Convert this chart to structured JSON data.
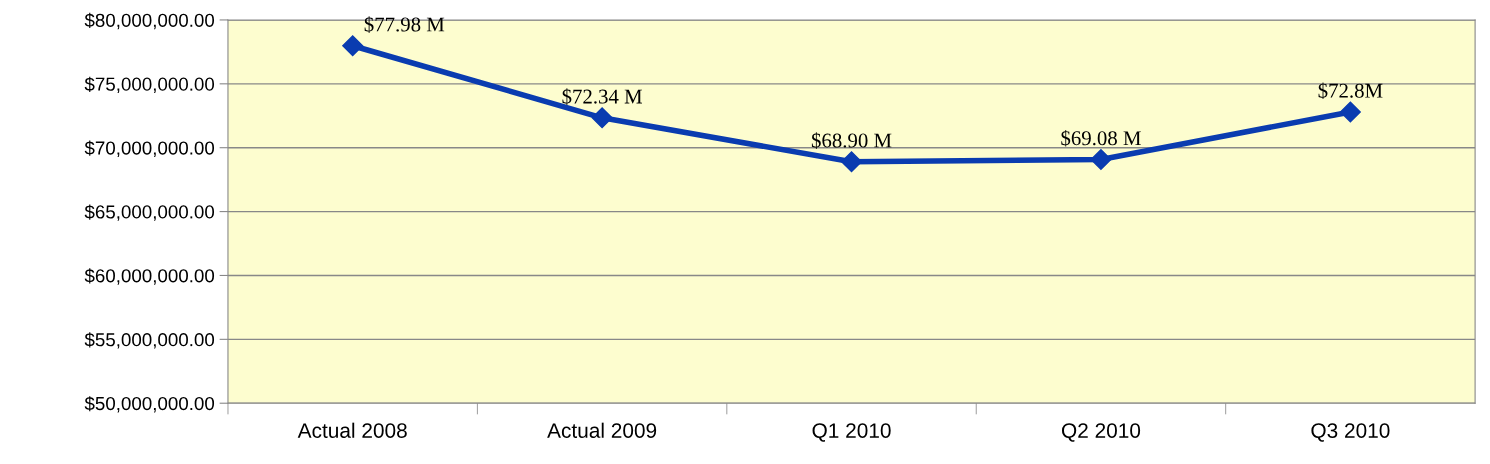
{
  "chart_data": {
    "type": "line",
    "categories": [
      "Actual 2008",
      "Actual 2009",
      "Q1 2010",
      "Q2 2010",
      "Q3 2010"
    ],
    "series": [
      {
        "color": "#0a3cb0",
        "values": [
          77980000,
          72340000,
          68900000,
          69080000,
          72800000
        ],
        "value_labels": [
          "$77.98 M",
          "$72.34 M",
          "$68.90 M",
          "$69.08 M",
          "$72.8M"
        ]
      }
    ],
    "ylim": [
      50000000,
      80000000
    ],
    "yticks": [
      {
        "value": 50000000,
        "label": "$50,000,000.00"
      },
      {
        "value": 55000000,
        "label": "$55,000,000.00"
      },
      {
        "value": 60000000,
        "label": "$60,000,000.00"
      },
      {
        "value": 65000000,
        "label": "$65,000,000.00"
      },
      {
        "value": 70000000,
        "label": "$70,000,000.00"
      },
      {
        "value": 75000000,
        "label": "$75,000,000.00"
      },
      {
        "value": 80000000,
        "label": "$80,000,000.00"
      }
    ],
    "grid": "y",
    "marker": "diamond",
    "line_style": "solid",
    "legend": false
  }
}
